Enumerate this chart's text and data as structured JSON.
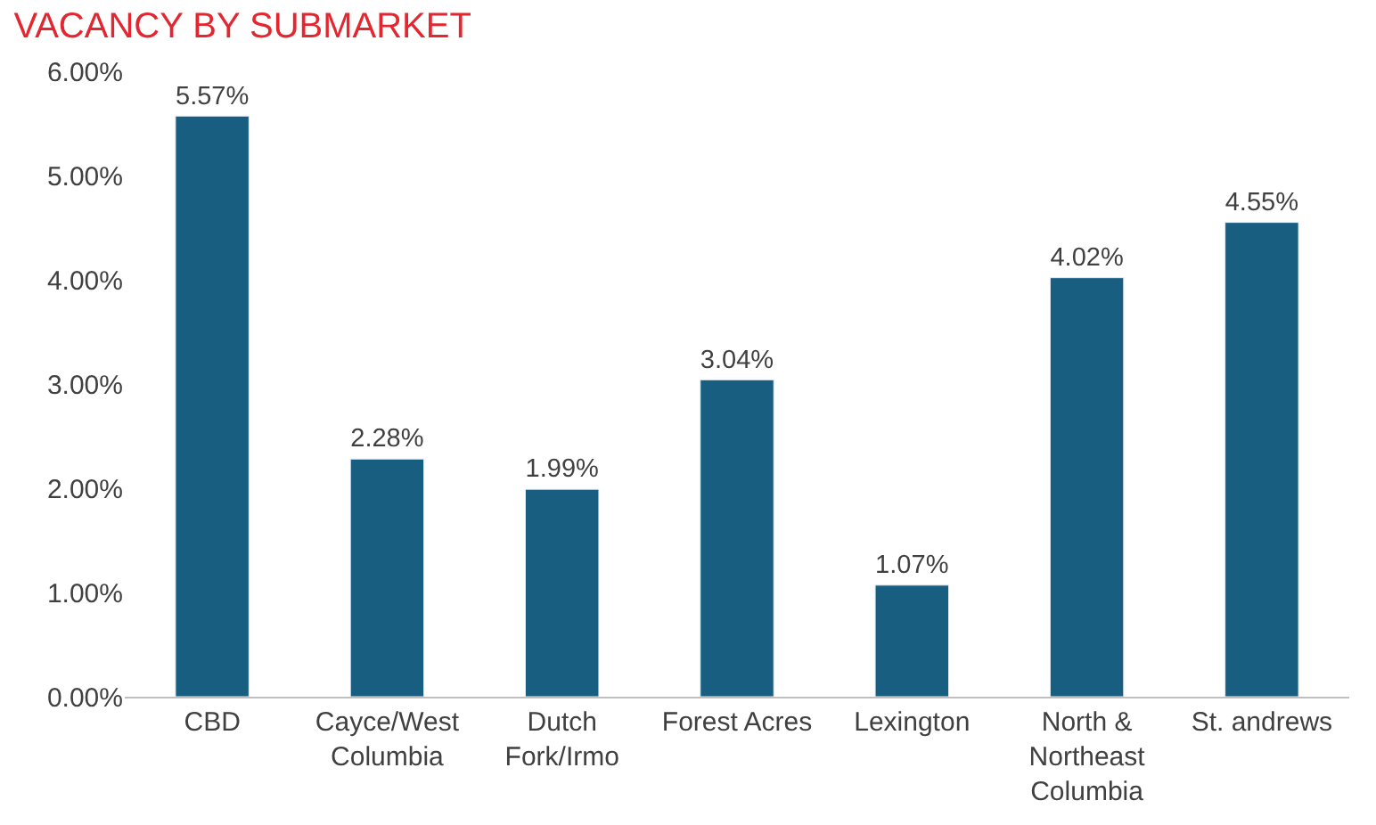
{
  "chart_data": {
    "type": "bar",
    "title": "VACANCY BY SUBMARKET",
    "categories": [
      "CBD",
      "Cayce/West Columbia",
      "Dutch Fork/Irmo",
      "Forest Acres",
      "Lexington",
      "North & Northeast Columbia",
      "St. andrews"
    ],
    "values": [
      5.57,
      2.28,
      1.99,
      3.04,
      1.07,
      4.02,
      4.55
    ],
    "value_labels": [
      "5.57%",
      "2.28%",
      "1.99%",
      "3.04%",
      "1.07%",
      "4.02%",
      "4.55%"
    ],
    "color": "#175e80",
    "ylim": [
      0,
      6
    ],
    "yticks": [
      {
        "value": 0,
        "label": "0.00%"
      },
      {
        "value": 1,
        "label": "1.00%"
      },
      {
        "value": 2,
        "label": "2.00%"
      },
      {
        "value": 3,
        "label": "3.00%"
      },
      {
        "value": 4,
        "label": "4.00%"
      },
      {
        "value": 5,
        "label": "5.00%"
      },
      {
        "value": 6,
        "label": "6.00%"
      }
    ]
  }
}
